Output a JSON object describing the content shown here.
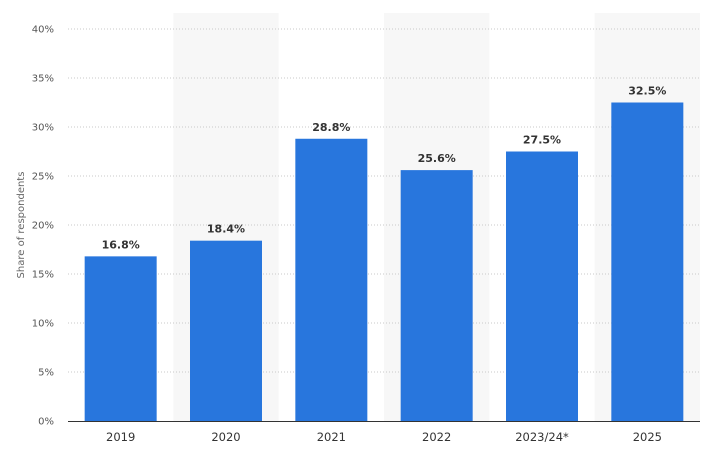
{
  "chart_data": {
    "type": "bar",
    "categories": [
      "2019",
      "2020",
      "2021",
      "2022",
      "2023/24*",
      "2025"
    ],
    "values": [
      16.8,
      18.4,
      28.8,
      25.6,
      27.5,
      32.5
    ],
    "data_labels": [
      "16.8%",
      "18.4%",
      "28.8%",
      "25.6%",
      "27.5%",
      "32.5%"
    ],
    "ylabel": "Share of respondents",
    "xlabel": "",
    "ylim": [
      0,
      40
    ],
    "yticks": [
      0,
      5,
      10,
      15,
      20,
      25,
      30,
      35,
      40
    ],
    "ytick_labels": [
      "0%",
      "5%",
      "10%",
      "15%",
      "20%",
      "25%",
      "30%",
      "35%",
      "40%"
    ],
    "grid": true,
    "bar_color": "#2876dd",
    "band_color": "#f7f7f7",
    "grid_color": "#c8c8c8"
  }
}
